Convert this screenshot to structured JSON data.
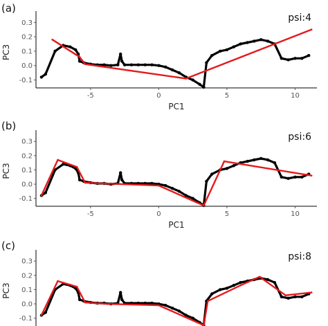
{
  "chart_data": [
    {
      "type": "scatter",
      "panel_label": "(a)",
      "annotation": "psi:4",
      "xlabel": "PC1",
      "ylabel": "PC3",
      "xlim": [
        -9,
        11.6
      ],
      "ylim": [
        -0.155,
        0.34
      ],
      "x_ticks": [
        -5,
        0,
        5,
        10
      ],
      "y_ticks": [
        -0.1,
        0.0,
        0.1,
        0.2,
        0.3
      ],
      "x_axis_visible": true,
      "grid": false,
      "series": [
        {
          "kind": "points",
          "color": "#000000",
          "x": [
            -8.6,
            -8.3,
            -7.6,
            -7.0,
            -6.5,
            -6.1,
            -5.9,
            -5.8,
            -5.5,
            -5.0,
            -4.5,
            -4.0,
            -3.5,
            -3.0,
            -2.8,
            -2.7,
            -2.5,
            -2.0,
            -1.5,
            -1.0,
            -0.5,
            0.0,
            0.5,
            1.0,
            1.5,
            2.0,
            2.5,
            3.0,
            3.3,
            3.5,
            3.9,
            4.5,
            5.0,
            5.5,
            6.0,
            6.5,
            7.0,
            7.5,
            8.0,
            8.5,
            9.0,
            9.5,
            10.0,
            10.5,
            11.0
          ],
          "y": [
            -0.08,
            -0.06,
            0.1,
            0.14,
            0.13,
            0.11,
            0.08,
            0.03,
            0.02,
            0.01,
            0.005,
            0.005,
            0.0,
            0.005,
            0.08,
            0.03,
            0.005,
            0.005,
            0.005,
            0.005,
            0.005,
            0.0,
            -0.01,
            -0.03,
            -0.05,
            -0.08,
            -0.1,
            -0.13,
            -0.15,
            0.02,
            0.07,
            0.1,
            0.11,
            0.13,
            0.15,
            0.16,
            0.17,
            0.18,
            0.17,
            0.15,
            0.05,
            0.04,
            0.05,
            0.05,
            0.07
          ]
        },
        {
          "kind": "line",
          "color": "#e31a1c",
          "x": [
            -7.8,
            -5.8,
            -5.4,
            2.0,
            11.2
          ],
          "y": [
            0.18,
            0.06,
            0.01,
            -0.09,
            0.25
          ]
        }
      ]
    },
    {
      "type": "scatter",
      "panel_label": "(b)",
      "annotation": "psi:6",
      "xlabel": "PC1",
      "ylabel": "PC3",
      "xlim": [
        -9,
        11.6
      ],
      "ylim": [
        -0.155,
        0.34
      ],
      "x_ticks": [
        -5,
        0,
        5,
        10
      ],
      "y_ticks": [
        -0.1,
        0.0,
        0.1,
        0.2,
        0.3
      ],
      "x_axis_visible": true,
      "grid": false,
      "series": [
        {
          "kind": "points",
          "color": "#000000",
          "x": [
            -8.6,
            -8.3,
            -7.6,
            -7.0,
            -6.5,
            -6.1,
            -5.9,
            -5.8,
            -5.5,
            -5.0,
            -4.5,
            -4.0,
            -3.5,
            -3.0,
            -2.8,
            -2.7,
            -2.5,
            -2.0,
            -1.5,
            -1.0,
            -0.5,
            0.0,
            0.5,
            1.0,
            1.5,
            2.0,
            2.5,
            3.0,
            3.3,
            3.5,
            3.9,
            4.5,
            5.0,
            5.5,
            6.0,
            6.5,
            7.0,
            7.5,
            8.0,
            8.5,
            9.0,
            9.5,
            10.0,
            10.5,
            11.0
          ],
          "y": [
            -0.08,
            -0.06,
            0.1,
            0.14,
            0.13,
            0.11,
            0.08,
            0.03,
            0.02,
            0.01,
            0.005,
            0.005,
            0.0,
            0.005,
            0.08,
            0.03,
            0.005,
            0.005,
            0.005,
            0.005,
            0.005,
            0.0,
            -0.01,
            -0.03,
            -0.05,
            -0.08,
            -0.1,
            -0.13,
            -0.15,
            0.02,
            0.07,
            0.1,
            0.11,
            0.13,
            0.15,
            0.16,
            0.17,
            0.18,
            0.17,
            0.15,
            0.05,
            0.04,
            0.05,
            0.05,
            0.07
          ]
        },
        {
          "kind": "line",
          "color": "#e31a1c",
          "x": [
            -8.6,
            -7.4,
            -6.0,
            -5.4,
            0.0,
            3.3,
            4.8,
            11.2
          ],
          "y": [
            -0.08,
            0.17,
            0.12,
            0.01,
            -0.01,
            -0.15,
            0.16,
            0.06
          ]
        }
      ]
    },
    {
      "type": "scatter",
      "panel_label": "(c)",
      "annotation": "psi:8",
      "xlabel": "",
      "ylabel": "PC3",
      "xlim": [
        -9,
        11.6
      ],
      "ylim": [
        -0.155,
        0.34
      ],
      "x_ticks": [],
      "y_ticks": [
        -0.1,
        0.0,
        0.1,
        0.2,
        0.3
      ],
      "x_axis_visible": false,
      "grid": false,
      "series": [
        {
          "kind": "points",
          "color": "#000000",
          "x": [
            -8.6,
            -8.3,
            -7.6,
            -7.0,
            -6.5,
            -6.1,
            -5.9,
            -5.8,
            -5.5,
            -5.0,
            -4.5,
            -4.0,
            -3.5,
            -3.0,
            -2.8,
            -2.7,
            -2.5,
            -2.0,
            -1.5,
            -1.0,
            -0.5,
            0.0,
            0.5,
            1.0,
            1.5,
            2.0,
            2.5,
            3.0,
            3.3,
            3.5,
            3.9,
            4.5,
            5.0,
            5.5,
            6.0,
            6.5,
            7.0,
            7.5,
            8.0,
            8.5,
            9.0,
            9.5,
            10.0,
            10.5,
            11.0
          ],
          "y": [
            -0.08,
            -0.06,
            0.1,
            0.14,
            0.13,
            0.11,
            0.08,
            0.03,
            0.02,
            0.01,
            0.005,
            0.005,
            0.0,
            0.005,
            0.08,
            0.03,
            0.005,
            0.005,
            0.005,
            0.005,
            0.005,
            0.0,
            -0.01,
            -0.03,
            -0.05,
            -0.08,
            -0.1,
            -0.13,
            -0.15,
            0.02,
            0.07,
            0.1,
            0.11,
            0.13,
            0.15,
            0.16,
            0.17,
            0.18,
            0.17,
            0.15,
            0.05,
            0.04,
            0.05,
            0.05,
            0.07
          ]
        },
        {
          "kind": "line",
          "color": "#e31a1c",
          "x": [
            -8.6,
            -7.4,
            -6.0,
            -5.4,
            -3.8,
            0.0,
            3.3,
            3.6,
            6.0,
            7.4,
            9.3,
            11.2
          ],
          "y": [
            -0.08,
            0.16,
            0.12,
            0.01,
            0.0,
            -0.01,
            -0.15,
            0.02,
            0.13,
            0.19,
            0.06,
            0.08
          ]
        }
      ]
    }
  ]
}
